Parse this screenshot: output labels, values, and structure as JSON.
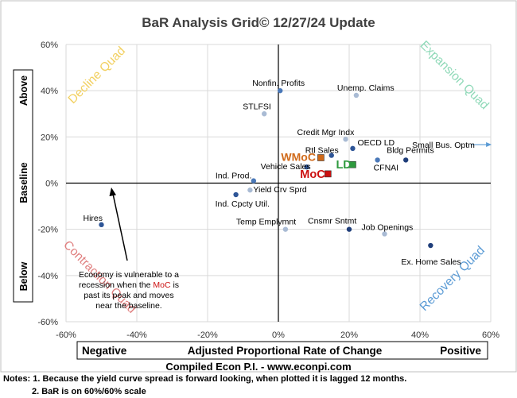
{
  "chart_data": {
    "type": "scatter",
    "title": "BaR Analysis Grid© 12/27/24 Update",
    "xlabel": "Adjusted Proportional Rate of Change",
    "xlabel_left": "Negative",
    "xlabel_right": "Positive",
    "ylabel_top": "Above",
    "ylabel_mid": "Baseline",
    "ylabel_bottom": "Below",
    "xlim": [
      -60,
      60
    ],
    "ylim": [
      -60,
      60
    ],
    "xticks": [
      "-60%",
      "-40%",
      "-20%",
      "0%",
      "20%",
      "40%",
      "60%"
    ],
    "yticks": [
      "60%",
      "40%",
      "20%",
      "0%",
      "-20%",
      "-40%",
      "-60%"
    ],
    "grid": true,
    "quadrants": {
      "decline": {
        "label": "Decline Quad",
        "color": "#f2d060"
      },
      "expansion": {
        "label": "Expansion Quad",
        "color": "#8fd9b8"
      },
      "contraction": {
        "label": "Contraction Quad",
        "color": "#e08080"
      },
      "recovery": {
        "label": "Recovery Quad",
        "color": "#5b9bd5"
      }
    },
    "points": [
      {
        "label": "Nonfin. Profits",
        "x": 0.5,
        "y": 40,
        "color": "#4a78b8"
      },
      {
        "label": "Unemp. Claims",
        "x": 22,
        "y": 38,
        "color": "#a9bbd4"
      },
      {
        "label": "STLFSI",
        "x": -4,
        "y": 30,
        "color": "#a9bbd4"
      },
      {
        "label": "Credit Mgr Indx",
        "x": 19,
        "y": 19,
        "color": "#a9bbd4"
      },
      {
        "label": "OECD LD",
        "x": 21,
        "y": 15,
        "color": "#2e5597"
      },
      {
        "label": "Small Bus. Optm",
        "x": 58,
        "y": 17,
        "color": "#5b9bd5"
      },
      {
        "label": "Rtl Sales",
        "x": 15,
        "y": 12,
        "color": "#2e5597"
      },
      {
        "label": "Bldg Permits",
        "x": 36,
        "y": 10,
        "color": "#1f3e7a"
      },
      {
        "label": "CFNAI",
        "x": 28,
        "y": 10,
        "color": "#4a78b8"
      },
      {
        "label": "Vehicle Sales",
        "x": 8,
        "y": 7,
        "color": "#2e5597"
      },
      {
        "label": "Ind. Prod.",
        "x": -7,
        "y": 1,
        "color": "#4a78b8"
      },
      {
        "label": "Yield Crv Sprd",
        "x": -8,
        "y": -3,
        "color": "#a9bbd4"
      },
      {
        "label": "Ind. Cpcty Util.",
        "x": -12,
        "y": -5,
        "color": "#2e5597"
      },
      {
        "label": "Hires",
        "x": -50,
        "y": -18,
        "color": "#2e5597"
      },
      {
        "label": "Temp Emplymnt",
        "x": 2,
        "y": -20,
        "color": "#a9bbd4"
      },
      {
        "label": "Cnsmr Sntmt",
        "x": 20,
        "y": -20,
        "color": "#1f3e7a"
      },
      {
        "label": "Job Openings",
        "x": 30,
        "y": -22,
        "color": "#a9bbd4"
      },
      {
        "label": "Ex. Home Sales",
        "x": 43,
        "y": -27,
        "color": "#1f3e7a"
      }
    ],
    "composites": [
      {
        "label": "WMoC",
        "x": 12,
        "y": 11,
        "color": "#d06a1a"
      },
      {
        "label": "MoC",
        "x": 14,
        "y": 4,
        "color": "#cc1111"
      },
      {
        "label": "LD",
        "x": 21,
        "y": 8,
        "color": "#2e9a3e"
      }
    ],
    "annotation_lines": [
      "Economy is vulnerable to a",
      "recession when the",
      "MoC",
      "is",
      "past its peak and moves",
      "near the baseline."
    ],
    "footer": "Compiled Econ P.I. - www.econpi.com",
    "notes": [
      "Notes: 1. Because the yield curve spread is forward looking, when plotted it is lagged 12 months.",
      "2. BaR is on 60%/60% scale"
    ]
  }
}
